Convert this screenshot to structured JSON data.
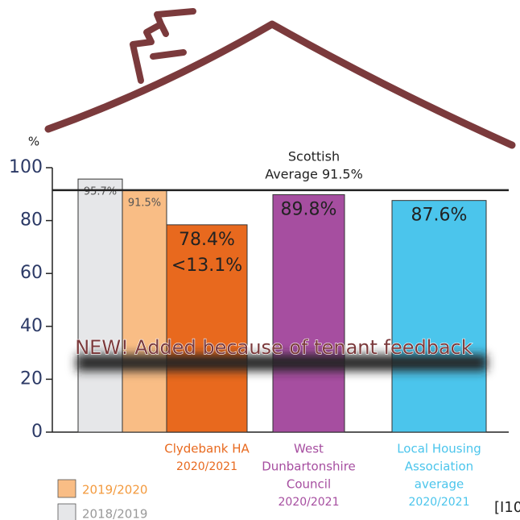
{
  "chart_data": {
    "type": "bar",
    "y_label": "%",
    "categories": [
      null,
      null,
      [
        "Clydebank HA",
        "2020/2021"
      ],
      [
        "West",
        "Dunbartonshire",
        "Council",
        "2020/2021"
      ],
      [
        "Local Housing",
        "Association",
        "average",
        "2020/2021"
      ]
    ],
    "values": [
      95.7,
      91.5,
      78.4,
      89.8,
      87.6
    ],
    "value_labels": [
      "95.7%",
      "91.5%",
      "78.4%",
      "89.8%",
      "87.6%"
    ],
    "colors": [
      "#e6e7e9",
      "#f9bd85",
      "#e8691e",
      "#a64ea0",
      "#4bc5ec"
    ],
    "difference_label": "<13.1%",
    "reference_line": {
      "value": 91.5,
      "label": [
        "Scottish",
        "Average 91.5%"
      ]
    },
    "ylim": [
      0,
      100
    ],
    "yticks": [
      0,
      20,
      40,
      60,
      80,
      100
    ],
    "legend": [
      {
        "name": "2019/2020",
        "color": "#f9bd85"
      },
      {
        "name": "2018/2019",
        "color": "#e6e7e9"
      }
    ],
    "banner": "NEW!  Added because of tenant feedback",
    "corner_text": "[I10"
  }
}
